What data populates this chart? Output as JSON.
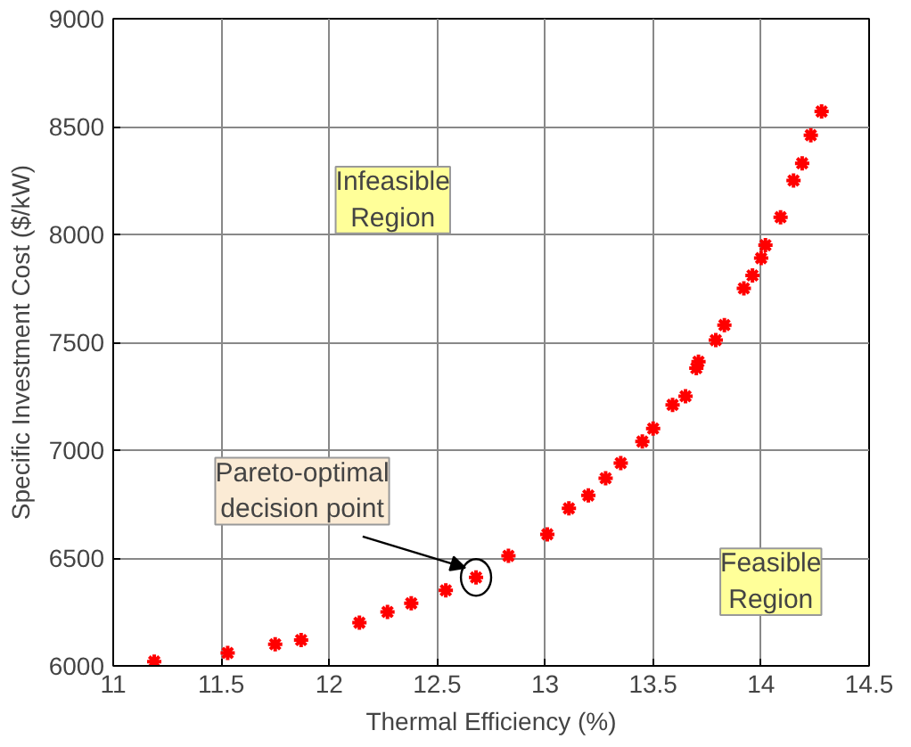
{
  "chart_data": {
    "type": "scatter",
    "xlabel": "Thermal Efficiency (%)",
    "ylabel": "Specific Investment Cost ($/kW)",
    "x": [
      11.19,
      11.53,
      11.75,
      11.87,
      12.14,
      12.27,
      12.38,
      12.54,
      12.68,
      12.83,
      13.01,
      13.11,
      13.2,
      13.28,
      13.35,
      13.45,
      13.5,
      13.59,
      13.65,
      13.7,
      13.71,
      13.79,
      13.83,
      13.92,
      13.96,
      14.0,
      14.02,
      14.09,
      14.15,
      14.19,
      14.23,
      14.28
    ],
    "series": [
      {
        "color": "#ff0000",
        "values": [
          6020,
          6060,
          6100,
          6120,
          6200,
          6250,
          6290,
          6350,
          6410,
          6510,
          6610,
          6730,
          6790,
          6870,
          6940,
          7040,
          7100,
          7210,
          7250,
          7380,
          7410,
          7510,
          7580,
          7750,
          7810,
          7890,
          7950,
          8080,
          8250,
          8330,
          8460,
          8570
        ]
      }
    ],
    "xlim": [
      11,
      14.5
    ],
    "ylim": [
      6000,
      9000
    ],
    "xticks": [
      11,
      11.5,
      12,
      12.5,
      13,
      13.5,
      14,
      14.5
    ],
    "yticks": [
      6000,
      6500,
      7000,
      7500,
      8000,
      8500,
      9000
    ],
    "grid": true,
    "marker": "cross",
    "annotations": [
      "Infeasible\nRegion",
      "Feasible\nRegion",
      {
        "text": "Pareto-optimal\ndecision point",
        "x": 12.68,
        "y": 6410
      }
    ]
  }
}
